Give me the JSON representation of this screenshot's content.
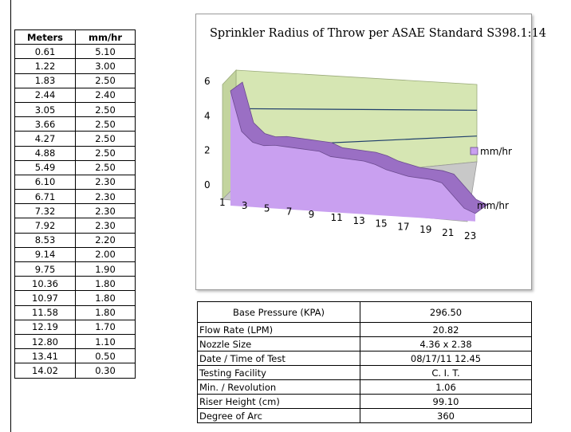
{
  "table": {
    "headers": [
      "Meters",
      "mm/hr"
    ],
    "rows": [
      [
        "0.61",
        "5.10"
      ],
      [
        "1.22",
        "3.00"
      ],
      [
        "1.83",
        "2.50"
      ],
      [
        "2.44",
        "2.40"
      ],
      [
        "3.05",
        "2.50"
      ],
      [
        "3.66",
        "2.50"
      ],
      [
        "4.27",
        "2.50"
      ],
      [
        "4.88",
        "2.50"
      ],
      [
        "5.49",
        "2.50"
      ],
      [
        "6.10",
        "2.30"
      ],
      [
        "6.71",
        "2.30"
      ],
      [
        "7.32",
        "2.30"
      ],
      [
        "7.92",
        "2.30"
      ],
      [
        "8.53",
        "2.20"
      ],
      [
        "9.14",
        "2.00"
      ],
      [
        "9.75",
        "1.90"
      ],
      [
        "10.36",
        "1.80"
      ],
      [
        "10.97",
        "1.80"
      ],
      [
        "11.58",
        "1.80"
      ],
      [
        "12.19",
        "1.70"
      ],
      [
        "12.80",
        "1.10"
      ],
      [
        "13.41",
        "0.50"
      ],
      [
        "14.02",
        "0.30"
      ]
    ]
  },
  "info": [
    {
      "label": "Base Pressure (KPA)",
      "value": "296.50"
    },
    {
      "label": "Flow Rate (LPM)",
      "value": "20.82"
    },
    {
      "label": "Nozzle Size",
      "value": "4.36 x 2.38"
    },
    {
      "label": "Date / Time of Test",
      "value": "08/17/11  12.45"
    },
    {
      "label": "Testing Facility",
      "value": "C. I. T."
    },
    {
      "label": "Min. / Revolution",
      "value": "1.06"
    },
    {
      "label": "Riser Height (cm)",
      "value": "99.10"
    },
    {
      "label": "Degree of Arc",
      "value": "360"
    }
  ],
  "chart_data": {
    "type": "area",
    "title": "Sprinkler Radius of Throw per ASAE Standard S398.1:14",
    "x": [
      1,
      2,
      3,
      4,
      5,
      6,
      7,
      8,
      9,
      10,
      11,
      12,
      13,
      14,
      15,
      16,
      17,
      18,
      19,
      20,
      21,
      22,
      23
    ],
    "x_tick_labels": [
      "1",
      "3",
      "5",
      "7",
      "9",
      "11",
      "13",
      "15",
      "17",
      "19",
      "21",
      "23"
    ],
    "y_ticks": [
      "0",
      "2",
      "4",
      "6"
    ],
    "ylim": [
      0,
      6
    ],
    "series": [
      {
        "name": "mm/hr",
        "values": [
          5.1,
          3.0,
          2.5,
          2.4,
          2.5,
          2.5,
          2.5,
          2.5,
          2.5,
          2.3,
          2.3,
          2.3,
          2.3,
          2.2,
          2.0,
          1.9,
          1.8,
          1.8,
          1.8,
          1.7,
          1.1,
          0.5,
          0.3
        ]
      }
    ],
    "legend": {
      "position": "right",
      "label": "mm/hr"
    },
    "depth_axis_label": "mm/hr",
    "colors": {
      "area": "#c9a0f0",
      "area_dark": "#9a6fc4",
      "wall": "#d6e6b3",
      "floor": "#c8c8c8",
      "grid": "#1f3e6b"
    }
  }
}
